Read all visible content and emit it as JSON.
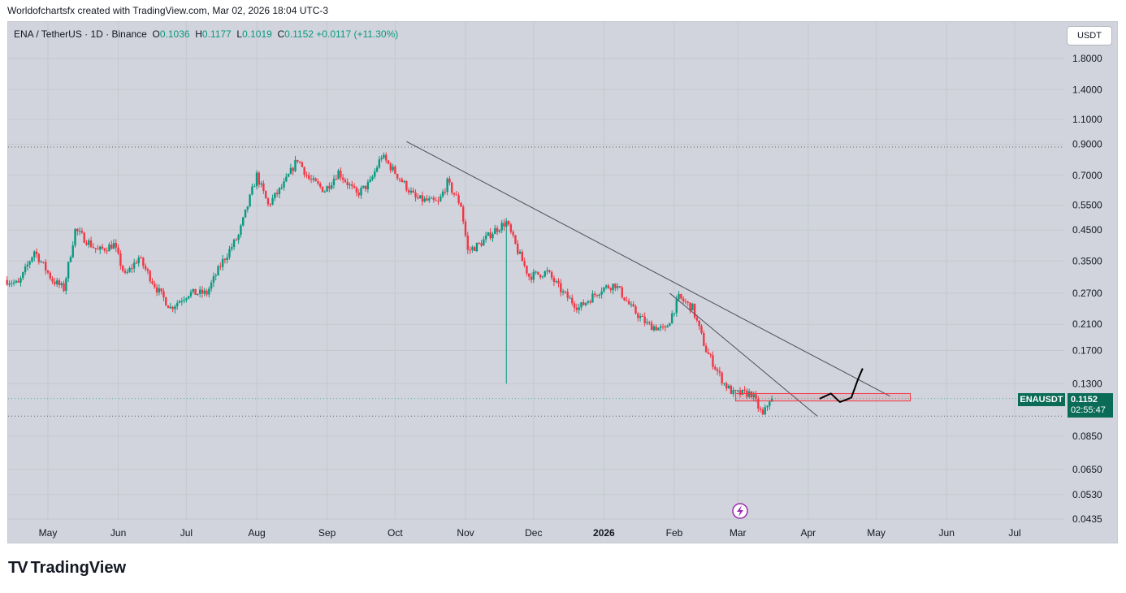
{
  "header": {
    "credit": "Worldofchartsfx created with TradingView.com, Mar 02, 2026 18:04 UTC-3"
  },
  "legend": {
    "symbol": "ENA / TetherUS · 1D · Binance",
    "o_label": "O",
    "o_value": "0.1036",
    "h_label": "H",
    "h_value": "0.1177",
    "l_label": "L",
    "l_value": "0.1019",
    "c_label": "C",
    "c_value": "0.1152",
    "change": "+0.0117 (+11.30%)"
  },
  "currency_button": "USDT",
  "price_tag": {
    "symbol": "ENAUSDT",
    "price": "0.1152",
    "countdown": "02:55:47"
  },
  "brand": {
    "name": "TradingView",
    "logo": "TV"
  },
  "colors": {
    "up": "#089981",
    "down": "#f23645",
    "background": "#d1d4dc",
    "tag": "#0a6b57"
  },
  "flash_icon": "lightning-icon",
  "chart_data": {
    "type": "candlestick",
    "title": "ENA / TetherUS · 1D · Binance",
    "scale": "log",
    "ylim": [
      0.0425,
      2.1
    ],
    "y_ticks": [
      "1.8000",
      "1.4000",
      "1.1000",
      "0.9000",
      "0.7000",
      "0.5500",
      "0.4500",
      "0.3500",
      "0.2700",
      "0.2100",
      "0.1700",
      "0.1300",
      "0.0850",
      "0.0650",
      "0.0530",
      "0.0435"
    ],
    "y_tick_values": [
      1.8,
      1.4,
      1.1,
      0.9,
      0.7,
      0.55,
      0.45,
      0.35,
      0.27,
      0.21,
      0.17,
      0.13,
      0.085,
      0.065,
      0.053,
      0.0435
    ],
    "x_ticks": [
      "May",
      "Jun",
      "Jul",
      "Aug",
      "Sep",
      "Oct",
      "Nov",
      "Dec",
      "2026",
      "Feb",
      "Mar",
      "Apr",
      "May",
      "Jun",
      "Jul"
    ],
    "x_tick_days": [
      0,
      31,
      61,
      92,
      123,
      153,
      184,
      214,
      245,
      276,
      304,
      335,
      365,
      396,
      426
    ],
    "first_day_offset": -18,
    "price_keypoints": [
      [
        0,
        0.3
      ],
      [
        5,
        0.29
      ],
      [
        12,
        0.38
      ],
      [
        20,
        0.3
      ],
      [
        25,
        0.28
      ],
      [
        30,
        0.45
      ],
      [
        40,
        0.38
      ],
      [
        47,
        0.4
      ],
      [
        52,
        0.31
      ],
      [
        58,
        0.36
      ],
      [
        66,
        0.28
      ],
      [
        72,
        0.24
      ],
      [
        80,
        0.27
      ],
      [
        88,
        0.27
      ],
      [
        95,
        0.35
      ],
      [
        102,
        0.43
      ],
      [
        110,
        0.7
      ],
      [
        115,
        0.55
      ],
      [
        122,
        0.65
      ],
      [
        128,
        0.8
      ],
      [
        133,
        0.68
      ],
      [
        140,
        0.62
      ],
      [
        146,
        0.72
      ],
      [
        154,
        0.6
      ],
      [
        160,
        0.66
      ],
      [
        165,
        0.82
      ],
      [
        172,
        0.7
      ],
      [
        180,
        0.58
      ],
      [
        190,
        0.56
      ],
      [
        194,
        0.66
      ],
      [
        200,
        0.55
      ],
      [
        203,
        0.38
      ],
      [
        208,
        0.4
      ],
      [
        215,
        0.45
      ],
      [
        220,
        0.48
      ],
      [
        225,
        0.38
      ],
      [
        230,
        0.31
      ],
      [
        238,
        0.32
      ],
      [
        245,
        0.27
      ],
      [
        252,
        0.24
      ],
      [
        262,
        0.28
      ],
      [
        268,
        0.29
      ],
      [
        275,
        0.24
      ],
      [
        282,
        0.21
      ],
      [
        290,
        0.2
      ],
      [
        296,
        0.26
      ],
      [
        302,
        0.24
      ],
      [
        308,
        0.17
      ],
      [
        316,
        0.13
      ],
      [
        320,
        0.12
      ],
      [
        328,
        0.12
      ],
      [
        333,
        0.1
      ],
      [
        337,
        0.12
      ]
    ],
    "wick_spike": {
      "day": 202,
      "low": 0.13
    },
    "last_close": 0.1152,
    "current_price_line": 0.1152,
    "horizontal_levels": [
      0.88,
      0.1
    ],
    "trendlines": [
      {
        "from": [
          158,
          0.92
        ],
        "to": [
          371,
          0.1175
        ]
      },
      {
        "from": [
          274,
          0.27
        ],
        "to": [
          339,
          0.1
        ]
      }
    ],
    "zone": {
      "from_day": 303,
      "to_day": 380,
      "top": 0.12,
      "bottom": 0.113
    },
    "projection": [
      [
        340,
        0.115
      ],
      [
        345,
        0.12
      ],
      [
        349,
        0.112
      ],
      [
        354,
        0.116
      ],
      [
        357,
        0.135
      ],
      [
        359,
        0.147
      ]
    ]
  }
}
